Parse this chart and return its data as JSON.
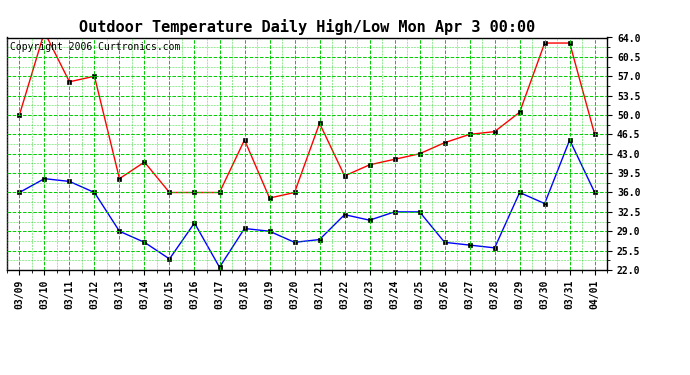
{
  "title": "Outdoor Temperature Daily High/Low Mon Apr 3 00:00",
  "copyright": "Copyright 2006 Curtronics.com",
  "labels": [
    "03/09",
    "03/10",
    "03/11",
    "03/12",
    "03/13",
    "03/14",
    "03/15",
    "03/16",
    "03/17",
    "03/18",
    "03/19",
    "03/20",
    "03/21",
    "03/22",
    "03/23",
    "03/24",
    "03/25",
    "03/26",
    "03/27",
    "03/28",
    "03/29",
    "03/30",
    "03/31",
    "04/01"
  ],
  "high": [
    50.0,
    65.0,
    56.0,
    57.0,
    38.5,
    41.5,
    36.0,
    36.0,
    36.0,
    45.5,
    35.0,
    36.0,
    48.5,
    39.0,
    41.0,
    42.0,
    43.0,
    45.0,
    46.5,
    47.0,
    50.5,
    63.0,
    63.0,
    46.5
  ],
  "low": [
    36.0,
    38.5,
    38.0,
    36.0,
    29.0,
    27.0,
    24.0,
    30.5,
    22.5,
    29.5,
    29.0,
    27.0,
    27.5,
    32.0,
    31.0,
    32.5,
    32.5,
    27.0,
    26.5,
    26.0,
    36.0,
    34.0,
    45.5,
    36.0
  ],
  "high_color": "#ff0000",
  "low_color": "#0000ff",
  "background_color": "#ffffff",
  "grid_color": "#00cc00",
  "ylim_min": 22.0,
  "ylim_max": 64.0,
  "yticks": [
    22.0,
    25.5,
    29.0,
    32.5,
    36.0,
    39.5,
    43.0,
    46.5,
    50.0,
    53.5,
    57.0,
    60.5,
    64.0
  ],
  "title_fontsize": 11,
  "axis_fontsize": 7,
  "copyright_fontsize": 7
}
